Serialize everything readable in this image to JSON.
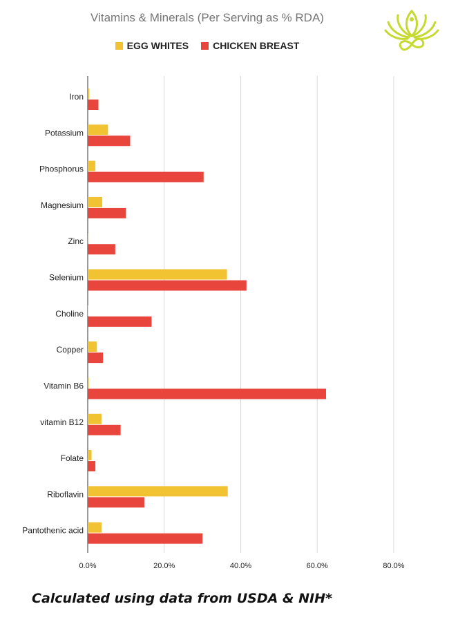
{
  "chart_data": {
    "type": "bar",
    "orientation": "horizontal",
    "title": "Vitamins & Minerals (Per Serving as % RDA)",
    "categories": [
      "Iron",
      "Potassium",
      "Phosphorus",
      "Magnesium",
      "Zinc",
      "Selenium",
      "Choline",
      "Copper",
      "Vitamin B6",
      "vitamin B12",
      "Folate",
      "Riboflavin",
      "Pantothenic acid"
    ],
    "series": [
      {
        "name": "EGG WHITES",
        "color": "#f1c232",
        "values": [
          0.4,
          5.3,
          2.0,
          3.8,
          0.2,
          36.4,
          0.1,
          2.4,
          0.3,
          3.6,
          1.0,
          36.6,
          3.6
        ]
      },
      {
        "name": "CHICKEN BREAST",
        "color": "#e8453c",
        "values": [
          2.8,
          11.1,
          30.3,
          10.0,
          7.2,
          41.5,
          16.7,
          4.0,
          62.3,
          8.6,
          2.0,
          14.8,
          30.0
        ]
      }
    ],
    "xlim": [
      0,
      80
    ],
    "xticks": [
      "0.0%",
      "20.0%",
      "40.0%",
      "60.0%",
      "80.0%"
    ],
    "grid": true,
    "legend_position": "top"
  },
  "footnote": "Calculated using data from USDA & NIH*",
  "logo_icon": "lotus-infinity-logo-icon"
}
